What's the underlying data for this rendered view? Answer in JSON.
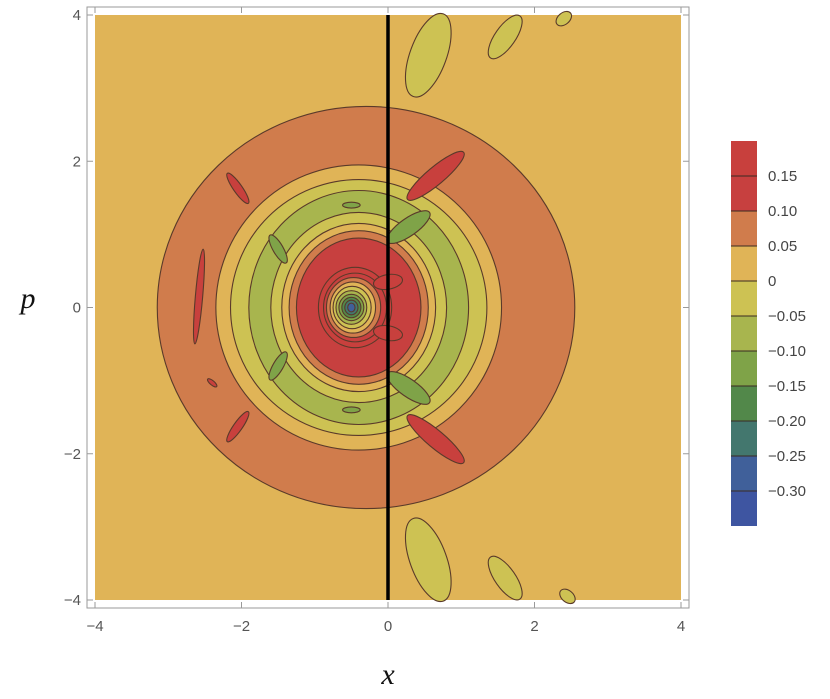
{
  "chart_data": {
    "type": "contour",
    "xlabel": "x",
    "ylabel": "p",
    "xlim": [
      -4,
      4
    ],
    "ylim": [
      -4,
      4
    ],
    "x_ticks": [
      {
        "value": -4,
        "label": "−4"
      },
      {
        "value": -2,
        "label": "−2"
      },
      {
        "value": 0,
        "label": "0"
      },
      {
        "value": 2,
        "label": "2"
      },
      {
        "value": 4,
        "label": "4"
      }
    ],
    "y_ticks": [
      {
        "value": -4,
        "label": "−4"
      },
      {
        "value": -2,
        "label": "−2"
      },
      {
        "value": 0,
        "label": "0"
      },
      {
        "value": 2,
        "label": "2"
      },
      {
        "value": 4,
        "label": "4"
      }
    ],
    "vertical_line_x": 0,
    "centre_minimum": {
      "x": -0.5,
      "p": 0.0
    },
    "background_level": 0,
    "legend": {
      "placement": "right",
      "bands": [
        {
          "from": 0.15,
          "to": 0.2,
          "color": "#c8403d"
        },
        {
          "from": 0.1,
          "to": 0.15,
          "color": "#c7403f"
        },
        {
          "from": 0.05,
          "to": 0.1,
          "color": "#d07c4c"
        },
        {
          "from": 0.0,
          "to": 0.05,
          "color": "#e0b457"
        },
        {
          "from": -0.05,
          "to": 0.0,
          "color": "#cdc253"
        },
        {
          "from": -0.1,
          "to": -0.05,
          "color": "#a8b54e"
        },
        {
          "from": -0.15,
          "to": -0.1,
          "color": "#7fa348"
        },
        {
          "from": -0.2,
          "to": -0.15,
          "color": "#52884a"
        },
        {
          "from": -0.25,
          "to": -0.2,
          "color": "#43776e"
        },
        {
          "from": -0.3,
          "to": -0.25,
          "color": "#40609a"
        },
        {
          "from": -0.35,
          "to": -0.3,
          "color": "#3e55a1"
        }
      ],
      "labels": [
        {
          "value": 0.15,
          "label": "0.15"
        },
        {
          "value": 0.1,
          "label": "0.10"
        },
        {
          "value": 0.05,
          "label": "0.05"
        },
        {
          "value": 0.0,
          "label": "0"
        },
        {
          "value": -0.05,
          "label": "−0.05"
        },
        {
          "value": -0.1,
          "label": "−0.10"
        },
        {
          "value": -0.15,
          "label": "−0.15"
        },
        {
          "value": -0.2,
          "label": "−0.20"
        },
        {
          "value": -0.25,
          "label": "−0.25"
        },
        {
          "value": -0.3,
          "label": "−0.30"
        }
      ]
    },
    "rings": [
      {
        "level": 0.05,
        "cx": -0.3,
        "cy": 0.0,
        "rx": 2.85,
        "ry": 2.75
      },
      {
        "level": 0.0,
        "cx": -0.4,
        "cy": 0.0,
        "rx": 1.95,
        "ry": 1.95
      },
      {
        "level": -0.05,
        "cx": -0.4,
        "cy": 0.0,
        "rx": 1.75,
        "ry": 1.75
      },
      {
        "level": -0.1,
        "cx": -0.4,
        "cy": 0.0,
        "rx": 1.5,
        "ry": 1.6
      },
      {
        "level": -0.05,
        "cx": -0.4,
        "cy": 0.0,
        "rx": 1.2,
        "ry": 1.3
      },
      {
        "level": 0.0,
        "cx": -0.4,
        "cy": 0.0,
        "rx": 1.05,
        "ry": 1.15
      },
      {
        "level": 0.05,
        "cx": -0.4,
        "cy": 0.0,
        "rx": 0.95,
        "ry": 1.05
      },
      {
        "level": 0.1,
        "cx": -0.4,
        "cy": 0.0,
        "rx": 0.85,
        "ry": 0.95
      },
      {
        "level": 0.15,
        "cx": -0.45,
        "cy": 0.0,
        "rx": 0.5,
        "ry": 0.55
      },
      {
        "level": 0.1,
        "cx": -0.45,
        "cy": 0.0,
        "rx": 0.43,
        "ry": 0.47
      },
      {
        "level": 0.05,
        "cx": -0.47,
        "cy": 0.0,
        "rx": 0.37,
        "ry": 0.41
      },
      {
        "level": 0.0,
        "cx": -0.48,
        "cy": 0.0,
        "rx": 0.31,
        "ry": 0.35
      },
      {
        "level": -0.05,
        "cx": -0.49,
        "cy": 0.0,
        "rx": 0.26,
        "ry": 0.29
      },
      {
        "level": -0.1,
        "cx": -0.5,
        "cy": 0.0,
        "rx": 0.21,
        "ry": 0.23
      },
      {
        "level": -0.15,
        "cx": -0.5,
        "cy": 0.0,
        "rx": 0.17,
        "ry": 0.18
      },
      {
        "level": -0.2,
        "cx": -0.5,
        "cy": 0.0,
        "rx": 0.13,
        "ry": 0.14
      },
      {
        "level": -0.25,
        "cx": -0.5,
        "cy": 0.0,
        "rx": 0.09,
        "ry": 0.1
      },
      {
        "level": -0.3,
        "cx": -0.5,
        "cy": 0.0,
        "rx": 0.05,
        "ry": 0.06
      }
    ],
    "patches": [
      {
        "level": 0.15,
        "cx": 0.65,
        "cy": 1.8,
        "rx": 0.5,
        "ry": 0.12,
        "angle": -40
      },
      {
        "level": 0.15,
        "cx": 0.65,
        "cy": -1.8,
        "rx": 0.5,
        "ry": 0.12,
        "angle": 40
      },
      {
        "level": 0.15,
        "cx": -2.05,
        "cy": 1.63,
        "rx": 0.25,
        "ry": 0.06,
        "angle": 55
      },
      {
        "level": 0.15,
        "cx": -2.05,
        "cy": -1.63,
        "rx": 0.25,
        "ry": 0.06,
        "angle": -55
      },
      {
        "level": 0.15,
        "cx": -2.58,
        "cy": 0.15,
        "rx": 0.05,
        "ry": 0.65,
        "angle": 5
      },
      {
        "level": 0.15,
        "cx": -2.4,
        "cy": -1.03,
        "rx": 0.08,
        "ry": 0.03,
        "angle": 40
      },
      {
        "level": -0.15,
        "cx": 0.28,
        "cy": 1.1,
        "rx": 0.35,
        "ry": 0.12,
        "angle": -35
      },
      {
        "level": -0.15,
        "cx": 0.28,
        "cy": -1.1,
        "rx": 0.35,
        "ry": 0.12,
        "angle": 35
      },
      {
        "level": -0.15,
        "cx": -1.5,
        "cy": 0.8,
        "rx": 0.22,
        "ry": 0.07,
        "angle": 60
      },
      {
        "level": -0.15,
        "cx": -1.5,
        "cy": -0.8,
        "rx": 0.22,
        "ry": 0.07,
        "angle": -60
      },
      {
        "level": -0.15,
        "cx": -0.5,
        "cy": 1.4,
        "rx": 0.12,
        "ry": 0.04,
        "angle": 0
      },
      {
        "level": -0.15,
        "cx": -0.5,
        "cy": -1.4,
        "rx": 0.12,
        "ry": 0.04,
        "angle": 0
      },
      {
        "level": 0.15,
        "cx": 0.0,
        "cy": 0.35,
        "rx": 0.2,
        "ry": 0.1,
        "angle": -10
      },
      {
        "level": 0.15,
        "cx": 0.0,
        "cy": -0.35,
        "rx": 0.2,
        "ry": 0.1,
        "angle": 10
      },
      {
        "level": -0.05,
        "cx": 0.55,
        "cy": 3.45,
        "rx": 0.6,
        "ry": 0.25,
        "angle": -70
      },
      {
        "level": -0.05,
        "cx": 0.55,
        "cy": -3.45,
        "rx": 0.6,
        "ry": 0.25,
        "angle": 70
      },
      {
        "level": -0.05,
        "cx": 1.6,
        "cy": 3.7,
        "rx": 0.35,
        "ry": 0.14,
        "angle": -55
      },
      {
        "level": -0.05,
        "cx": 1.6,
        "cy": -3.7,
        "rx": 0.35,
        "ry": 0.14,
        "angle": 55
      },
      {
        "level": -0.05,
        "cx": 2.4,
        "cy": 3.95,
        "rx": 0.12,
        "ry": 0.08,
        "angle": -40
      },
      {
        "level": -0.05,
        "cx": 2.45,
        "cy": -3.95,
        "rx": 0.12,
        "ry": 0.08,
        "angle": 40
      }
    ]
  }
}
